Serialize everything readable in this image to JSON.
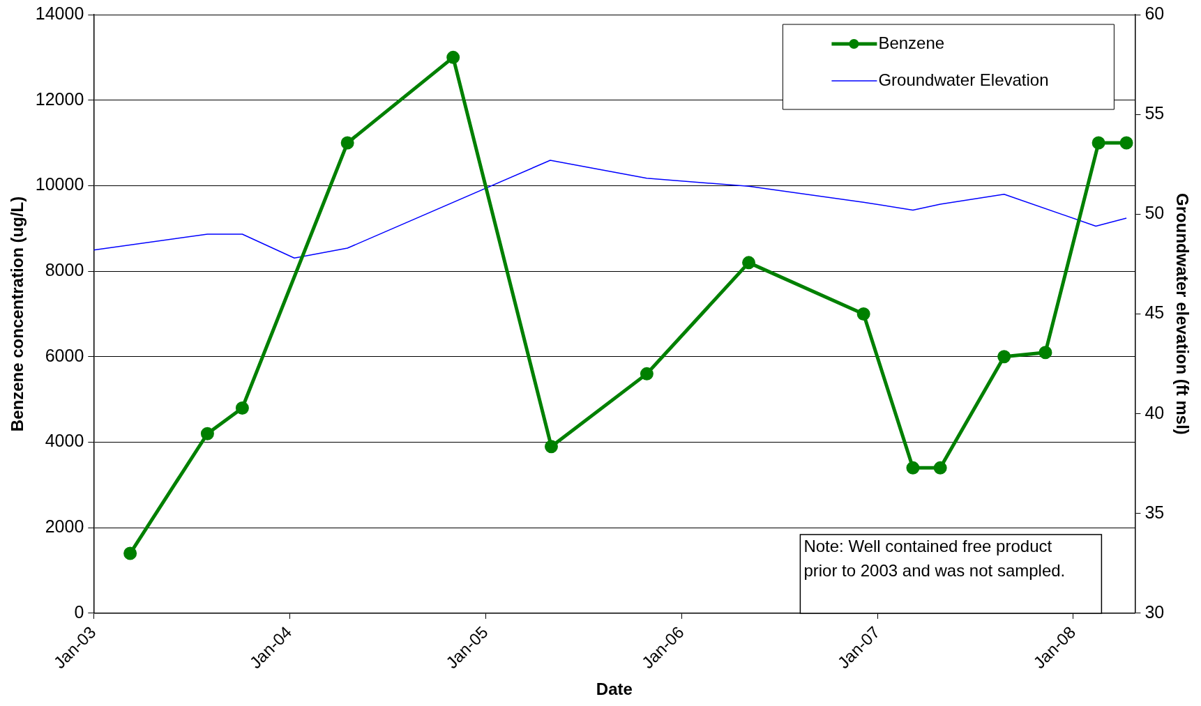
{
  "chart_data": {
    "type": "line",
    "xlabel": "Date",
    "ylabel": "Benzene concentration (ug/L)",
    "y2label": "Groundwater elevation (ft msl)",
    "xlim": [
      "2003-01-01",
      "2008-04-25"
    ],
    "xticks": [
      {
        "value": "2003-01-01",
        "label": "Jan-03"
      },
      {
        "value": "2004-01-01",
        "label": "Jan-04"
      },
      {
        "value": "2005-01-01",
        "label": "Jan-05"
      },
      {
        "value": "2006-01-01",
        "label": "Jan-06"
      },
      {
        "value": "2007-01-01",
        "label": "Jan-07"
      },
      {
        "value": "2008-01-01",
        "label": "Jan-08"
      }
    ],
    "ylim": [
      0,
      14000
    ],
    "yticks": [
      0,
      2000,
      4000,
      6000,
      8000,
      10000,
      12000,
      14000
    ],
    "y2lim": [
      30,
      60
    ],
    "y2ticks": [
      30,
      35,
      40,
      45,
      50,
      55,
      60
    ],
    "grid": "y",
    "legend": "top right",
    "series": [
      {
        "name": "Benzene",
        "color": "#008000",
        "marker": "circle",
        "x": [
          "2003-03-10",
          "2003-08-01",
          "2003-10-05",
          "2004-04-18",
          "2004-11-01",
          "2005-05-03",
          "2005-10-28",
          "2006-05-06",
          "2006-12-06",
          "2007-03-08",
          "2007-04-28",
          "2007-08-25",
          "2007-11-10",
          "2008-02-17",
          "2008-04-09"
        ],
        "values": [
          1400,
          4200,
          4800,
          11000,
          13000,
          3900,
          5600,
          8200,
          7000,
          3400,
          3400,
          6000,
          6100,
          11000,
          11000
        ]
      },
      {
        "name": "Groundwater Elevation",
        "color": "#0000ff",
        "marker": "none",
        "axis": "y2",
        "x": [
          "2003-01-01",
          "2003-08-01",
          "2003-10-05",
          "2004-01-10",
          "2004-04-18",
          "2005-05-01",
          "2005-10-28",
          "2006-05-06",
          "2006-12-06",
          "2007-03-08",
          "2007-04-28",
          "2007-08-25",
          "2008-02-12",
          "2008-04-09"
        ],
        "values": [
          48.2,
          49.0,
          49.0,
          47.8,
          48.3,
          52.7,
          51.8,
          51.4,
          50.6,
          50.2,
          50.5,
          51.0,
          49.4,
          49.8
        ]
      }
    ],
    "annotations": [
      "Note: Well contained free product prior to 2003 and was not sampled."
    ]
  }
}
